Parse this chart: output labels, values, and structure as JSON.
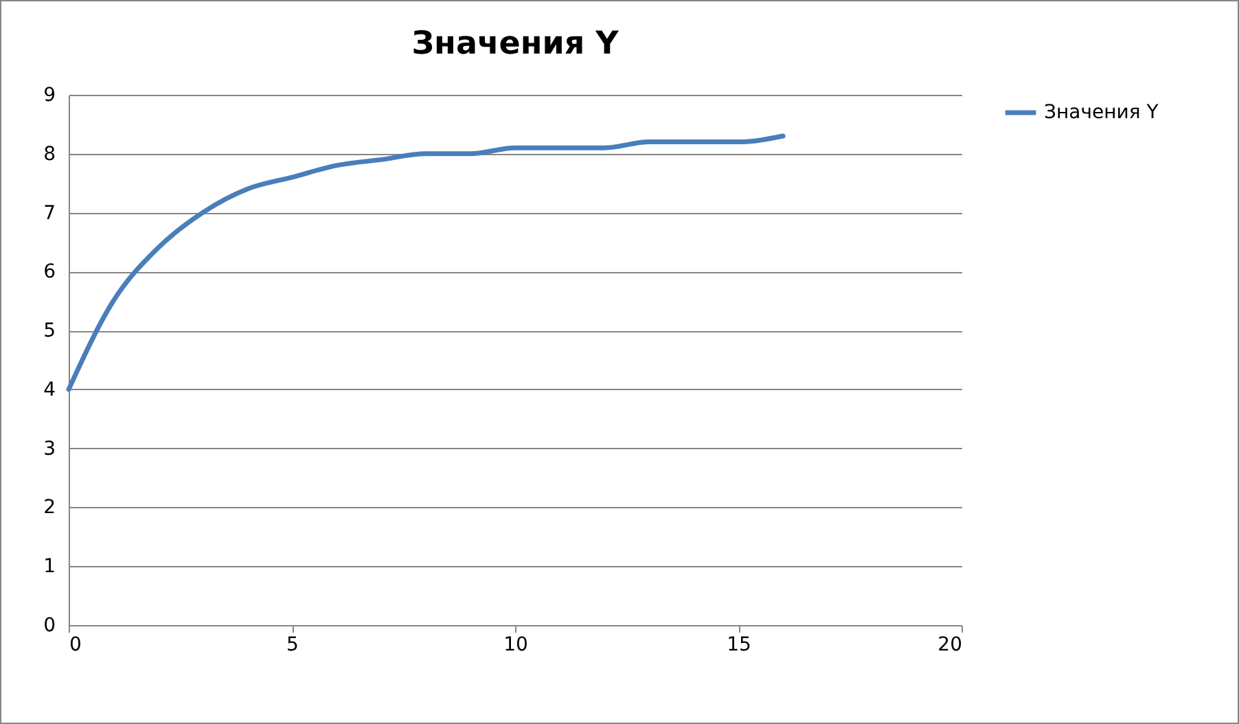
{
  "chart_data": {
    "type": "line",
    "title": "Значения Y",
    "x": [
      0,
      1,
      2,
      3,
      4,
      5,
      6,
      7,
      8,
      9,
      10,
      11,
      12,
      13,
      14,
      15,
      16
    ],
    "series": [
      {
        "name": "Значения Y",
        "color": "#4a7ebb",
        "values": [
          4.0,
          5.5,
          6.4,
          7.0,
          7.4,
          7.6,
          7.8,
          7.9,
          8.0,
          8.0,
          8.1,
          8.1,
          8.1,
          8.2,
          8.2,
          8.2,
          8.3
        ]
      }
    ],
    "xlim": [
      0,
      20
    ],
    "xticks": [
      0,
      5,
      10,
      15,
      20
    ],
    "ylim": [
      0,
      9
    ],
    "yticks": [
      0,
      1,
      2,
      3,
      4,
      5,
      6,
      7,
      8,
      9
    ],
    "grid": "y",
    "legend": "right",
    "marker": "none",
    "line_style": "solid"
  }
}
